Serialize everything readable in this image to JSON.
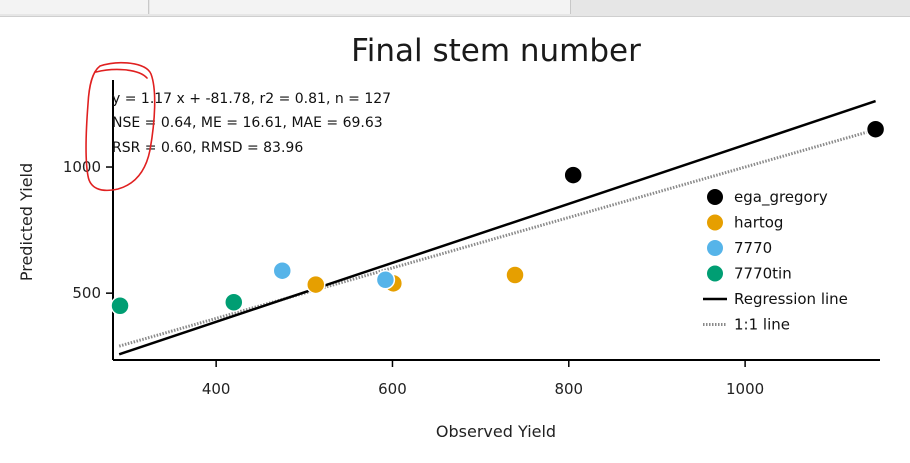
{
  "chart_data": {
    "type": "scatter",
    "title": "Final stem number",
    "xlabel": "Observed Yield",
    "ylabel": "Predicted Yield",
    "xlim": [
      283,
      1153
    ],
    "ylim": [
      235,
      1345
    ],
    "x_ticks": [
      400,
      600,
      800,
      1000
    ],
    "y_ticks": [
      500,
      1000
    ],
    "series": [
      {
        "name": "ega_gregory",
        "color": "#000000",
        "points": [
          [
            805,
            968
          ],
          [
            1148,
            1150
          ]
        ]
      },
      {
        "name": "hartog",
        "color": "#E69F00",
        "points": [
          [
            513,
            534
          ],
          [
            601,
            539
          ],
          [
            739,
            572
          ]
        ]
      },
      {
        "name": "7770",
        "color": "#56B4E9",
        "points": [
          [
            475,
            589
          ],
          [
            592,
            553
          ]
        ]
      },
      {
        "name": "7770tin",
        "color": "#009E73",
        "points": [
          [
            291,
            450
          ],
          [
            420,
            464
          ]
        ]
      }
    ],
    "regression_line": {
      "label": "Regression line",
      "slope": 1.17,
      "intercept": -81.78,
      "x_range": [
        290,
        1148
      ]
    },
    "identity_line": {
      "label": "1:1 line",
      "x_range": [
        290,
        1148
      ]
    },
    "stats_text": [
      "y = 1.17 x + -81.78, r2 = 0.81, n = 127",
      "NSE = 0.64, ME = 16.61, MAE = 69.63",
      "RSR = 0.60, RMSD = 83.96"
    ],
    "legend_position": "right"
  },
  "annotation": {
    "color": "#e02020",
    "description": "hand-drawn-circle"
  }
}
